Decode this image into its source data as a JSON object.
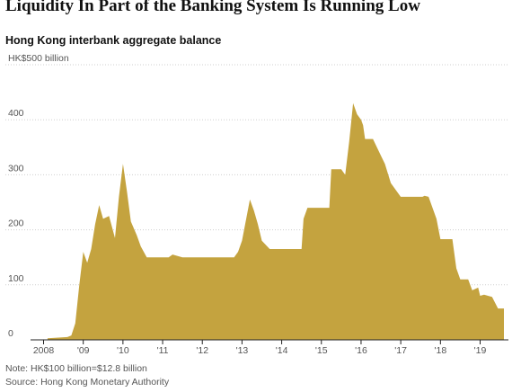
{
  "headline": "Liquidity In Part of the Banking System Is Running Low",
  "subtitle": "Hong Kong interbank aggregate balance",
  "note": "Note: HK$100 billion=$12.8 billion",
  "source": "Source: Hong Kong Monetary Authority",
  "chart_data": {
    "type": "area",
    "title": "Hong Kong interbank aggregate balance",
    "ylabel": "HK$500 billion",
    "color": "#c4a33f",
    "ylim": [
      0,
      500
    ],
    "yticks": [
      0,
      100,
      200,
      300,
      400
    ],
    "ytick_labels": [
      "0",
      "100",
      "200",
      "300",
      "400",
      "HK$500 billion"
    ],
    "xlim": [
      2008,
      2019.75
    ],
    "xticks": [
      2008,
      2009,
      2010,
      2011,
      2012,
      2013,
      2014,
      2015,
      2016,
      2017,
      2018,
      2019
    ],
    "xtick_labels": [
      "2008",
      "'09",
      "'10",
      "'11",
      "'12",
      "'13",
      "'14",
      "'15",
      "'16",
      "'17",
      "'18",
      "'19"
    ],
    "grid": true,
    "x": [
      2008.1,
      2008.6,
      2008.7,
      2008.8,
      2008.9,
      2009.0,
      2009.1,
      2009.2,
      2009.3,
      2009.4,
      2009.5,
      2009.65,
      2009.8,
      2009.9,
      2010.0,
      2010.1,
      2010.2,
      2010.35,
      2010.45,
      2010.6,
      2011.0,
      2011.15,
      2011.25,
      2011.5,
      2012.0,
      2012.5,
      2012.8,
      2012.9,
      2013.0,
      2013.2,
      2013.3,
      2013.4,
      2013.5,
      2013.7,
      2014.0,
      2014.5,
      2014.55,
      2014.65,
      2014.8,
      2015.0,
      2015.2,
      2015.25,
      2015.5,
      2015.6,
      2015.7,
      2015.8,
      2015.9,
      2016.0,
      2016.05,
      2016.1,
      2016.3,
      2016.5,
      2016.6,
      2016.75,
      2016.85,
      2017.0,
      2017.5,
      2017.55,
      2017.6,
      2017.7,
      2017.8,
      2017.9,
      2018.0,
      2018.2,
      2018.3,
      2018.4,
      2018.5,
      2018.7,
      2018.8,
      2018.95,
      2019.0,
      2019.1,
      2019.2,
      2019.3,
      2019.45,
      2019.6
    ],
    "y": [
      3,
      5,
      8,
      30,
      100,
      160,
      140,
      165,
      210,
      245,
      220,
      225,
      185,
      260,
      320,
      270,
      215,
      190,
      170,
      150,
      150,
      150,
      155,
      150,
      150,
      150,
      150,
      160,
      180,
      255,
      235,
      210,
      180,
      165,
      165,
      165,
      220,
      240,
      240,
      240,
      240,
      310,
      310,
      300,
      360,
      430,
      410,
      400,
      390,
      365,
      365,
      335,
      320,
      285,
      275,
      260,
      260,
      260,
      262,
      260,
      240,
      220,
      183,
      183,
      183,
      130,
      110,
      110,
      90,
      95,
      80,
      82,
      80,
      78,
      57,
      57
    ]
  }
}
